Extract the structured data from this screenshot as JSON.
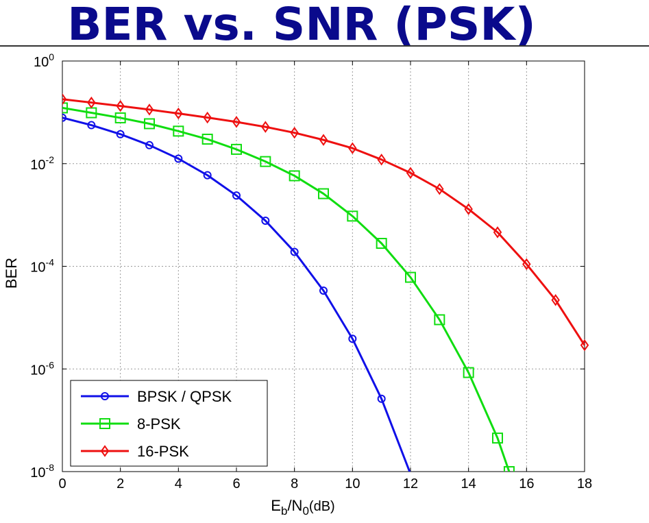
{
  "slide": {
    "title": "BER vs. SNR (PSK)"
  },
  "chart_data": {
    "type": "line",
    "title": "",
    "xlabel": {
      "main": "E",
      "sub1": "b",
      "mid": "/N",
      "sub2": "0",
      "tail": "(dB)"
    },
    "ylabel": "BER",
    "x_range": [
      0,
      18
    ],
    "y_scale": "log",
    "y_range": [
      1e-08,
      1
    ],
    "x_ticks": [
      "0",
      "2",
      "4",
      "6",
      "8",
      "10",
      "12",
      "14",
      "16",
      "18"
    ],
    "y_ticks": [
      {
        "value": 1,
        "base": "10",
        "exp": "0"
      },
      {
        "value": 0.01,
        "base": "10",
        "exp": "-2"
      },
      {
        "value": 0.0001,
        "base": "10",
        "exp": "-4"
      },
      {
        "value": 1e-06,
        "base": "10",
        "exp": "-6"
      },
      {
        "value": 1e-08,
        "base": "10",
        "exp": "-8"
      }
    ],
    "grid": true,
    "legend_position": "bottom-left",
    "series": [
      {
        "name": "BPSK / QPSK",
        "color": "#1010e8",
        "marker": "circle",
        "x": [
          0,
          1,
          2,
          3,
          4,
          5,
          6,
          7,
          8,
          9,
          10,
          11,
          12
        ],
        "y": [
          0.0786,
          0.0563,
          0.0375,
          0.0229,
          0.0125,
          0.00595,
          0.00239,
          0.000773,
          0.000191,
          3.36e-05,
          3.87e-06,
          2.62e-07,
          9e-09
        ]
      },
      {
        "name": "8-PSK",
        "color": "#10dd10",
        "marker": "square",
        "x": [
          0,
          1,
          2,
          3,
          4,
          5,
          6,
          7,
          8,
          9,
          10,
          11,
          12,
          13,
          14,
          15,
          15.4
        ],
        "y": [
          0.122,
          0.098,
          0.078,
          0.06,
          0.043,
          0.03,
          0.019,
          0.011,
          0.0058,
          0.0026,
          0.00095,
          0.00028,
          6.1e-05,
          9.1e-06,
          8.5e-07,
          4.5e-08,
          1e-08
        ]
      },
      {
        "name": "16-PSK",
        "color": "#ee1010",
        "marker": "diamond",
        "x": [
          0,
          1,
          2,
          3,
          4,
          5,
          6,
          7,
          8,
          9,
          10,
          11,
          12,
          13,
          14,
          15,
          16,
          17,
          18
        ],
        "y": [
          0.18,
          0.155,
          0.133,
          0.113,
          0.095,
          0.079,
          0.065,
          0.052,
          0.04,
          0.029,
          0.02,
          0.012,
          0.0066,
          0.0032,
          0.0013,
          0.00046,
          0.00011,
          2.2e-05,
          2.9e-06
        ]
      }
    ]
  }
}
